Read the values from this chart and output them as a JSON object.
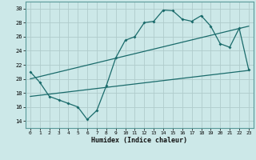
{
  "xlabel": "Humidex (Indice chaleur)",
  "bg_color": "#cce8e8",
  "grid_color": "#b0cccc",
  "line_color": "#1a6b6b",
  "ylim": [
    13,
    31
  ],
  "xlim": [
    -0.5,
    23.5
  ],
  "yticks": [
    14,
    16,
    18,
    20,
    22,
    24,
    26,
    28,
    30
  ],
  "xticks": [
    0,
    1,
    2,
    3,
    4,
    5,
    6,
    7,
    8,
    9,
    10,
    11,
    12,
    13,
    14,
    15,
    16,
    17,
    18,
    19,
    20,
    21,
    22,
    23
  ],
  "line1_x": [
    0,
    1,
    2,
    3,
    4,
    5,
    6,
    7,
    8,
    9,
    10,
    11,
    12,
    13,
    14,
    15,
    16,
    17,
    18,
    19,
    20,
    21,
    22,
    23
  ],
  "line1_y": [
    21.0,
    19.5,
    17.5,
    17.0,
    16.5,
    16.0,
    14.2,
    15.5,
    19.0,
    23.0,
    25.5,
    26.0,
    28.0,
    28.2,
    29.8,
    29.7,
    28.5,
    28.2,
    29.0,
    27.5,
    25.0,
    24.5,
    27.2,
    21.3
  ],
  "line2_x": [
    0,
    23
  ],
  "line2_y": [
    17.5,
    21.2
  ],
  "line3_x": [
    0,
    23
  ],
  "line3_y": [
    20.0,
    27.5
  ]
}
